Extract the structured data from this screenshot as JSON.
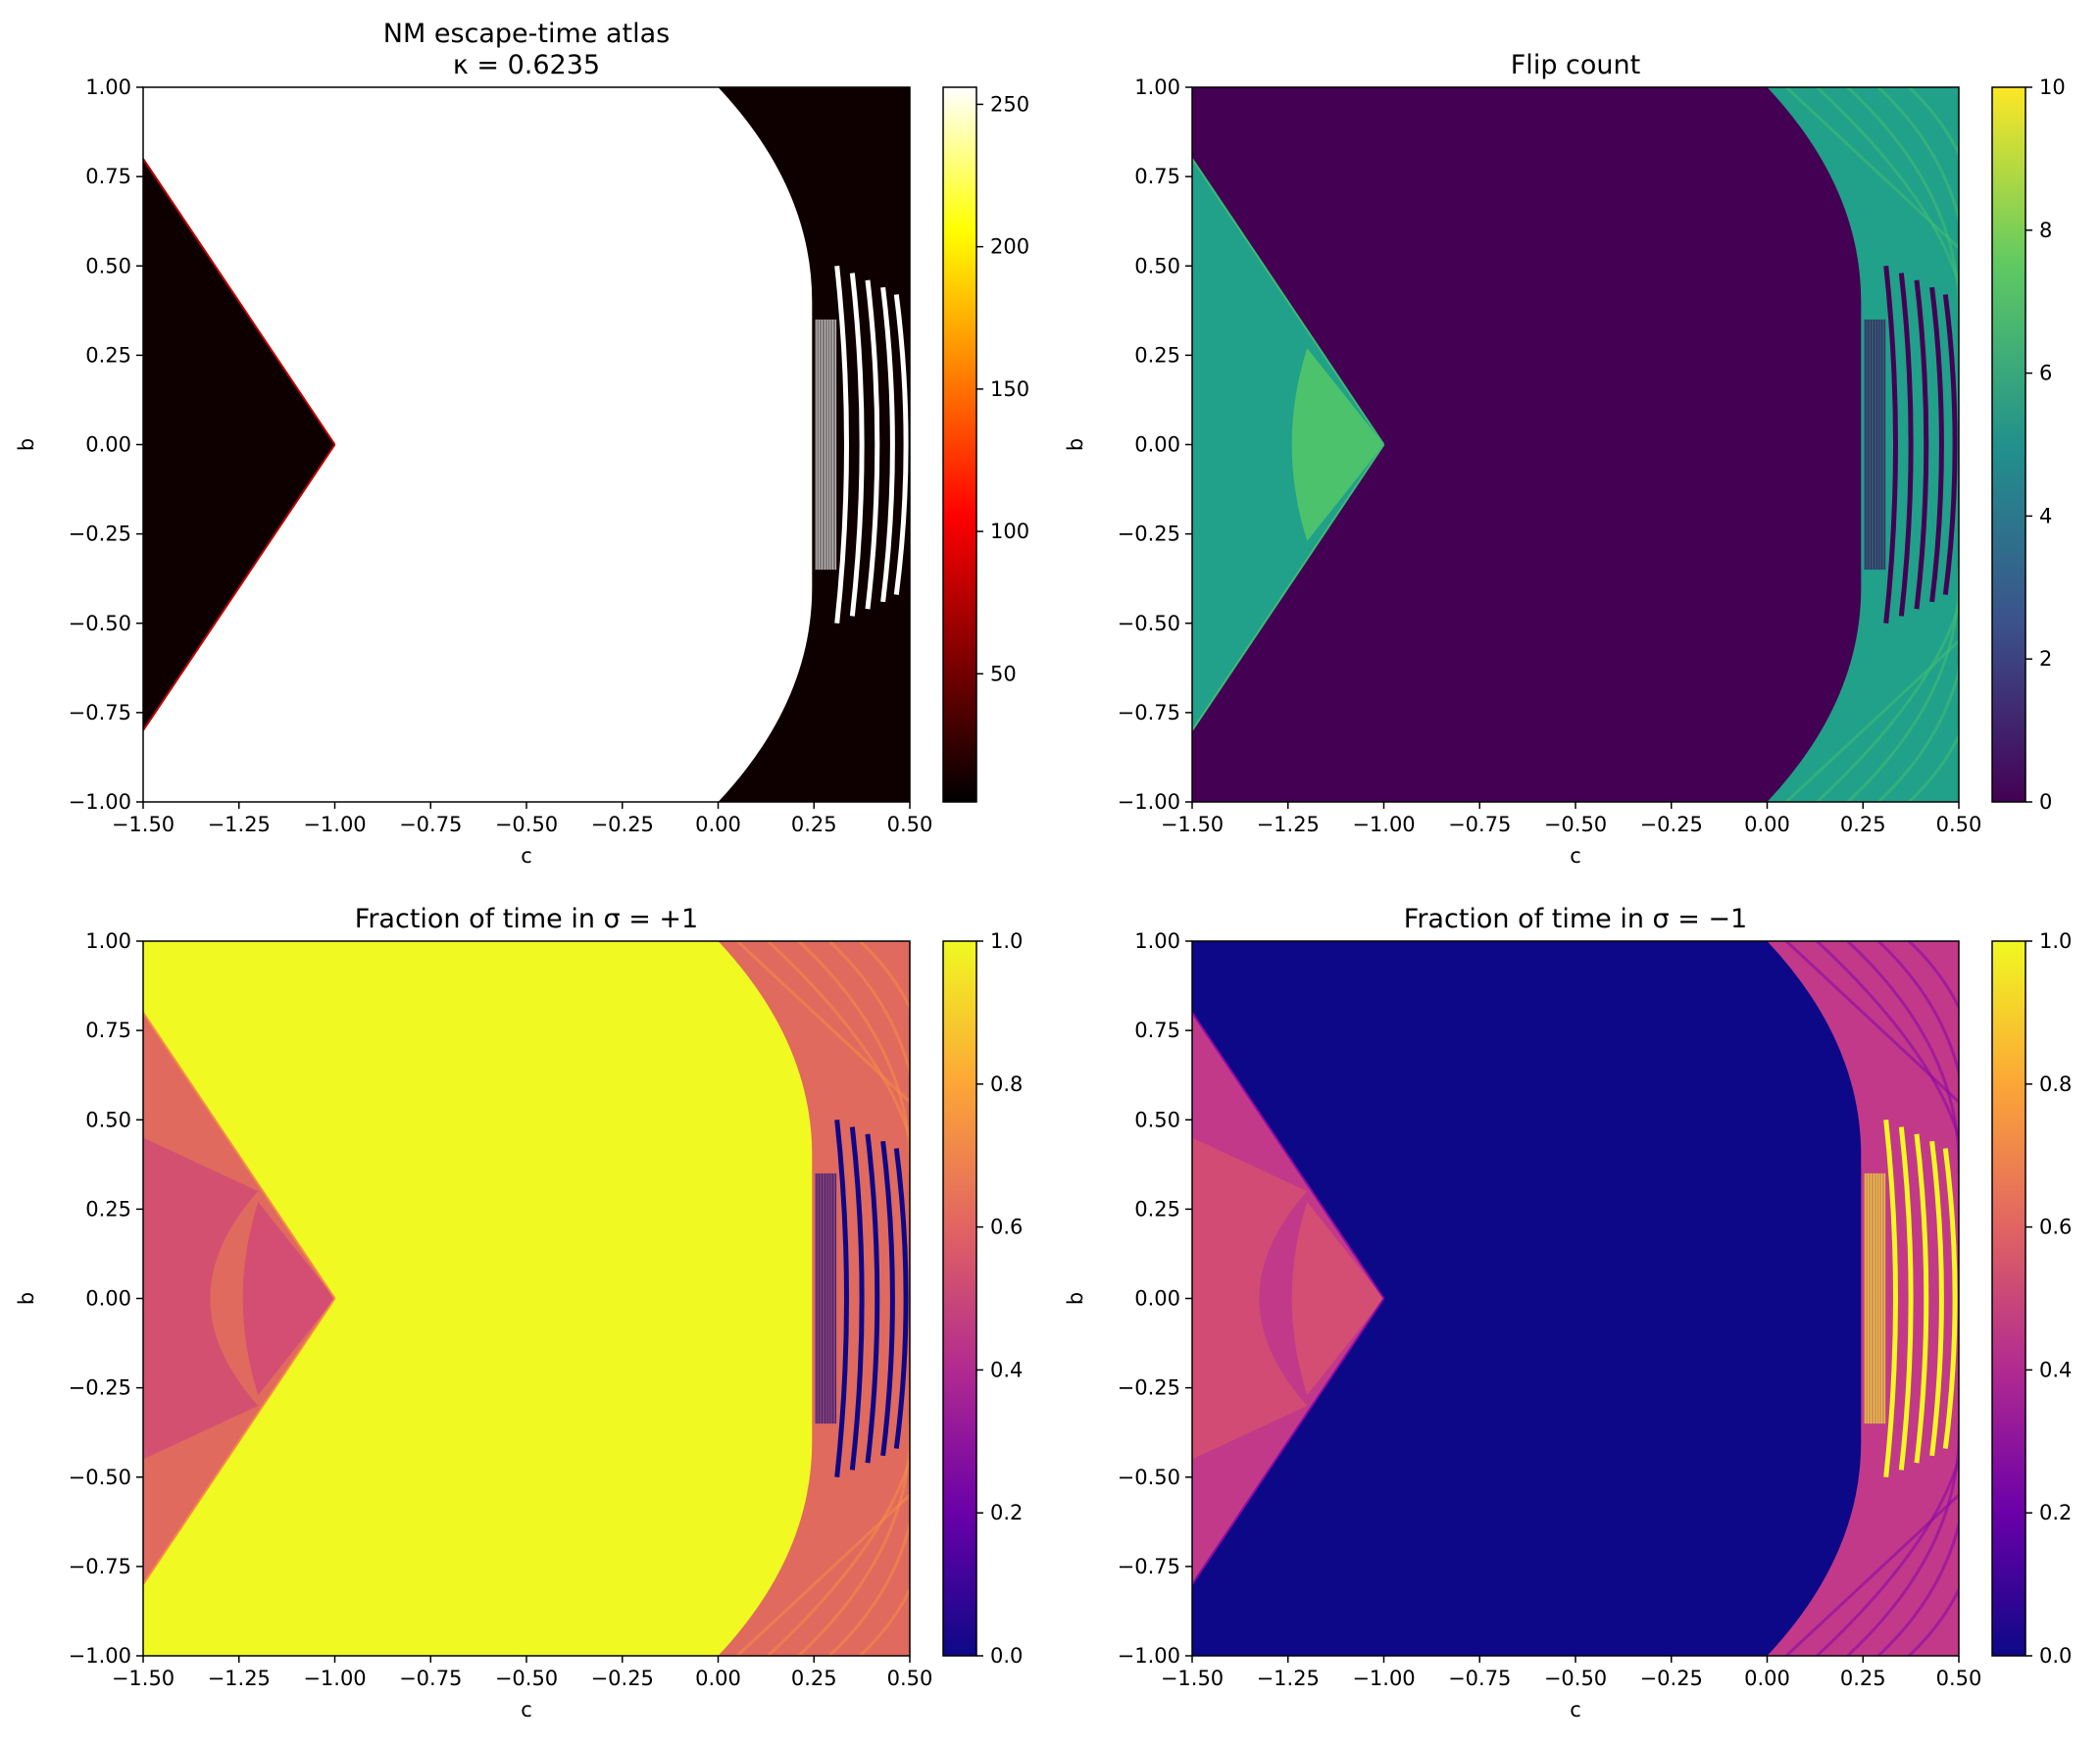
{
  "figure": {
    "panels": [
      {
        "id": "escape-time",
        "title_lines": [
          "NM escape-time atlas",
          "κ = 0.6235"
        ],
        "xlabel": "c",
        "ylabel": "b",
        "colormap": "hot",
        "colors": [
          "#000000",
          "#7f0000",
          "#ff0000",
          "#ff8000",
          "#ffff00",
          "#ffffff"
        ],
        "colorbar_ticks": [
          "50",
          "100",
          "150",
          "200",
          "250"
        ]
      },
      {
        "id": "flip-count",
        "title_lines": [
          "Flip count"
        ],
        "xlabel": "c",
        "ylabel": "b",
        "colormap": "viridis",
        "colors": [
          "#440154",
          "#3b528b",
          "#21918c",
          "#5ec962",
          "#fde725"
        ],
        "colorbar_ticks": [
          "0",
          "2",
          "4",
          "6",
          "8",
          "10"
        ]
      },
      {
        "id": "frac-plus",
        "title_lines": [
          "Fraction of time in σ = +1"
        ],
        "xlabel": "c",
        "ylabel": "b",
        "colormap": "plasma",
        "colors": [
          "#0d0887",
          "#6a00a8",
          "#b12a90",
          "#e16462",
          "#fca636",
          "#f0f921"
        ],
        "colorbar_ticks": [
          "0.0",
          "0.2",
          "0.4",
          "0.6",
          "0.8",
          "1.0"
        ]
      },
      {
        "id": "frac-minus",
        "title_lines": [
          "Fraction of time in σ = −1"
        ],
        "xlabel": "c",
        "ylabel": "b",
        "colormap": "plasma",
        "colors": [
          "#0d0887",
          "#6a00a8",
          "#b12a90",
          "#e16462",
          "#fca636",
          "#f0f921"
        ],
        "colorbar_ticks": [
          "0.0",
          "0.2",
          "0.4",
          "0.6",
          "0.8",
          "1.0"
        ]
      }
    ]
  },
  "chart_data": [
    {
      "type": "heatmap",
      "title": "NM escape-time atlas κ = 0.6235",
      "xlabel": "c",
      "ylabel": "b",
      "xlim": [
        -1.5,
        0.5
      ],
      "ylim": [
        -1.0,
        1.0
      ],
      "xticks": [
        "−1.50",
        "−1.25",
        "−1.00",
        "−0.75",
        "−0.50",
        "−0.25",
        "0.00",
        "0.25",
        "0.50"
      ],
      "yticks": [
        "−1.00",
        "−0.75",
        "−0.50",
        "−0.25",
        "0.00",
        "0.25",
        "0.50",
        "0.75",
        "1.00"
      ],
      "colorbar_range": [
        5,
        256
      ],
      "regions": [
        {
          "where": "central bounded region (c from about -1.0 to 0.25)",
          "value": 256
        },
        {
          "where": "left wedge c < -1.0, |b| < 0.8",
          "value": 5
        },
        {
          "where": "right region c > 0.25, with arc fringes",
          "value": 5
        }
      ]
    },
    {
      "type": "heatmap",
      "title": "Flip count",
      "xlabel": "c",
      "ylabel": "b",
      "xlim": [
        -1.5,
        0.5
      ],
      "ylim": [
        -1.0,
        1.0
      ],
      "colorbar_range": [
        0,
        10
      ],
      "regions": [
        {
          "where": "central region",
          "value": 0
        },
        {
          "where": "left wedge",
          "value": 5
        },
        {
          "where": "inner left wedge near b = 0",
          "value": 7
        },
        {
          "where": "right region with arcs",
          "value": 5
        }
      ]
    },
    {
      "type": "heatmap",
      "title": "Fraction of time in σ = +1",
      "xlabel": "c",
      "ylabel": "b",
      "xlim": [
        -1.5,
        0.5
      ],
      "ylim": [
        -1.0,
        1.0
      ],
      "colorbar_range": [
        0.0,
        1.0
      ],
      "regions": [
        {
          "where": "central region",
          "value": 1.0
        },
        {
          "where": "left wedge outer",
          "value": 0.62
        },
        {
          "where": "left wedge inner near b = 0",
          "value": 0.5
        },
        {
          "where": "right region",
          "value": 0.6
        },
        {
          "where": "narrow arcs near c = 0.45",
          "value": 0.0
        }
      ]
    },
    {
      "type": "heatmap",
      "title": "Fraction of time in σ = −1",
      "xlabel": "c",
      "ylabel": "b",
      "xlim": [
        -1.5,
        0.5
      ],
      "ylim": [
        -1.0,
        1.0
      ],
      "colorbar_range": [
        0.0,
        1.0
      ],
      "regions": [
        {
          "where": "central region",
          "value": 0.0
        },
        {
          "where": "left wedge outer",
          "value": 0.38
        },
        {
          "where": "left wedge inner near b = 0",
          "value": 0.5
        },
        {
          "where": "right region",
          "value": 0.4
        },
        {
          "where": "narrow arcs near c = 0.45",
          "value": 1.0
        }
      ]
    }
  ]
}
